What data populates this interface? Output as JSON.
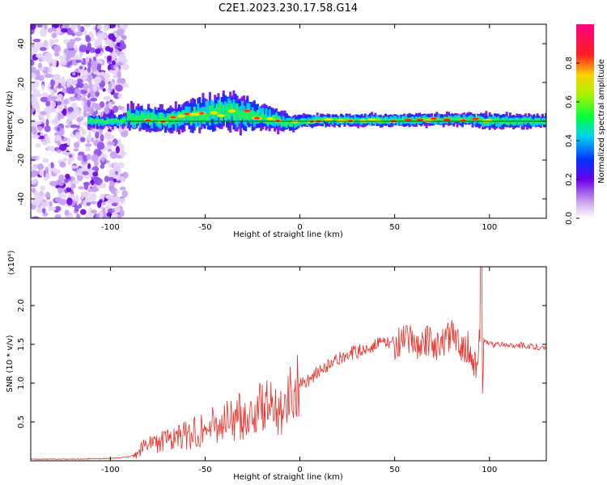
{
  "title": "C2E1.2023.230.17.58.G14",
  "colors": {
    "snr_line": "#e8322b",
    "axis": "#000000",
    "background": "#ffffff"
  },
  "chart_data": [
    {
      "type": "heatmap",
      "xlabel": "Height of straight line (km)",
      "ylabel": "Frequency (Hz)",
      "xlim": [
        -142,
        130
      ],
      "ylim": [
        -50,
        50
      ],
      "xticks": [
        -100,
        -50,
        0,
        50,
        100
      ],
      "yticks": [
        -40,
        -20,
        0,
        20,
        40
      ],
      "xtick_labels": [
        "-100",
        "-50",
        "0",
        "50",
        "100"
      ],
      "ytick_labels": [
        "-40",
        "-20",
        "0",
        "20",
        "40"
      ],
      "colorbar": {
        "label": "Normalized spectral amplitude",
        "range": [
          0,
          1
        ],
        "ticks": [
          0.0,
          0.2,
          0.4,
          0.6,
          0.8
        ],
        "tick_labels": [
          "0.0",
          "0.2",
          "0.4",
          "0.6",
          "0.8"
        ],
        "colormap": "rainbow (white-violet-blue-cyan-green-yellow-red-magenta)"
      },
      "noise_region_x": [
        -142,
        -92
      ],
      "signal_band": [
        {
          "x": -92,
          "center": 2,
          "halfwidth": 6
        },
        {
          "x": -70,
          "center": 1,
          "halfwidth": 6
        },
        {
          "x": -50,
          "center": 4,
          "halfwidth": 8
        },
        {
          "x": -35,
          "center": 5,
          "halfwidth": 9
        },
        {
          "x": -20,
          "center": 2,
          "halfwidth": 6
        },
        {
          "x": -5,
          "center": -1,
          "halfwidth": 4
        },
        {
          "x": 0,
          "center": 0,
          "halfwidth": 3
        },
        {
          "x": 10,
          "center": 0.5,
          "halfwidth": 3
        },
        {
          "x": 50,
          "center": 0.5,
          "halfwidth": 3
        },
        {
          "x": 90,
          "center": 1,
          "halfwidth": 3
        },
        {
          "x": 95,
          "center": 0,
          "halfwidth": 4
        },
        {
          "x": 130,
          "center": 0,
          "halfwidth": 3
        }
      ]
    },
    {
      "type": "line",
      "xlabel": "Height of straight line (km)",
      "ylabel": "SNR (10 * v/v)",
      "y_multiplier_label": "(x10⁴)",
      "xlim": [
        -142,
        130
      ],
      "ylim": [
        0,
        2.5
      ],
      "xticks": [
        -100,
        -50,
        0,
        50,
        100
      ],
      "yticks": [
        0.5,
        1.0,
        1.5,
        2.0
      ],
      "xtick_labels": [
        "-100",
        "-50",
        "0",
        "50",
        "100"
      ],
      "ytick_labels": [
        "0.5",
        "1.0",
        "1.5",
        "2.0"
      ],
      "series": [
        {
          "x": [
            -142,
            -120,
            -100,
            -90,
            -85,
            -80,
            -75,
            -70,
            -60,
            -50,
            -40,
            -30,
            -25,
            -20,
            -15,
            -10,
            -5,
            0,
            5,
            10,
            15,
            20,
            25,
            30,
            35,
            40,
            45,
            50,
            60,
            70,
            75,
            80,
            85,
            90,
            93,
            95,
            97,
            100,
            110,
            120,
            130
          ],
          "y": [
            0.02,
            0.02,
            0.03,
            0.05,
            0.12,
            0.25,
            0.22,
            0.28,
            0.32,
            0.42,
            0.5,
            0.58,
            0.6,
            0.7,
            0.68,
            0.72,
            0.85,
            1.0,
            1.05,
            1.15,
            1.22,
            1.3,
            1.38,
            1.4,
            1.45,
            1.5,
            1.52,
            1.52,
            1.53,
            1.52,
            1.5,
            1.6,
            1.5,
            1.45,
            1.2,
            1.6,
            1.55,
            1.5,
            1.5,
            1.48,
            1.45
          ]
        }
      ]
    }
  ]
}
